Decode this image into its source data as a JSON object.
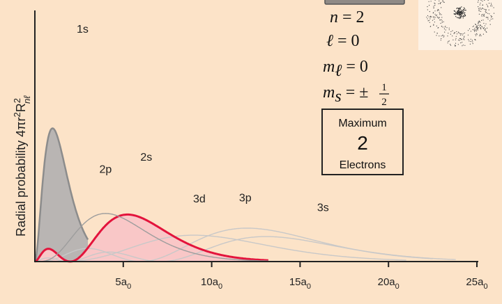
{
  "chart_data": {
    "type": "area",
    "ylabel": "Radial probability 4πr²R²nℓ",
    "ylabel_parts": {
      "main": "Radial probability 4πr",
      "sup1": "2",
      "R": "R",
      "sup2": "2",
      "sub": "nℓ"
    },
    "x_unit": "a₀",
    "xlim": [
      0,
      25
    ],
    "x_ticks": [
      {
        "value": 5,
        "num": "5a",
        "sub": "0"
      },
      {
        "value": 10,
        "num": "10a",
        "sub": "0"
      },
      {
        "value": 15,
        "num": "15a",
        "sub": "0"
      },
      {
        "value": 20,
        "num": "20a",
        "sub": "0"
      },
      {
        "value": 25,
        "num": "25a",
        "sub": "0"
      }
    ],
    "series": [
      {
        "name": "1s",
        "n": 1,
        "l": 0,
        "color": "#8c8c8c",
        "fill": "#b9b5b3",
        "highlight": false,
        "label_pos": [
          2.7,
          0.93
        ]
      },
      {
        "name": "2p",
        "n": 2,
        "l": 1,
        "color": "#9d9d9d",
        "fill": "none",
        "highlight": false,
        "label_pos": [
          4.0,
          0.36
        ]
      },
      {
        "name": "2s",
        "n": 2,
        "l": 0,
        "color": "#e3143c",
        "fill": "#f9c7c7",
        "highlight": true,
        "label_pos": [
          6.3,
          0.41
        ]
      },
      {
        "name": "3d",
        "n": 3,
        "l": 2,
        "color": "#c8c8c8",
        "fill": "none",
        "highlight": false,
        "label_pos": [
          9.3,
          0.24
        ]
      },
      {
        "name": "3p",
        "n": 3,
        "l": 1,
        "color": "#c8c8c8",
        "fill": "none",
        "highlight": false,
        "label_pos": [
          11.9,
          0.245
        ]
      },
      {
        "name": "3s",
        "n": 3,
        "l": 0,
        "color": "#c8c8c8",
        "fill": "none",
        "highlight": false,
        "label_pos": [
          16.3,
          0.205
        ]
      }
    ]
  },
  "quantum_numbers": {
    "n_label": "n",
    "n_value": "= 2",
    "l_label": "ℓ",
    "l_value": "= 0",
    "ml_label": "m",
    "ml_sub": "ℓ",
    "ml_value": "= 0",
    "ms_label": "m",
    "ms_sub": "s",
    "ms_value": "= ±",
    "ms_frac_num": "1",
    "ms_frac_den": "2"
  },
  "max_box": {
    "line1": "Maximum",
    "line2": "2",
    "line3": "Electrons"
  },
  "colors": {
    "background": "#fce3c8",
    "highlight": "#e3143c",
    "axis": "#222222"
  }
}
